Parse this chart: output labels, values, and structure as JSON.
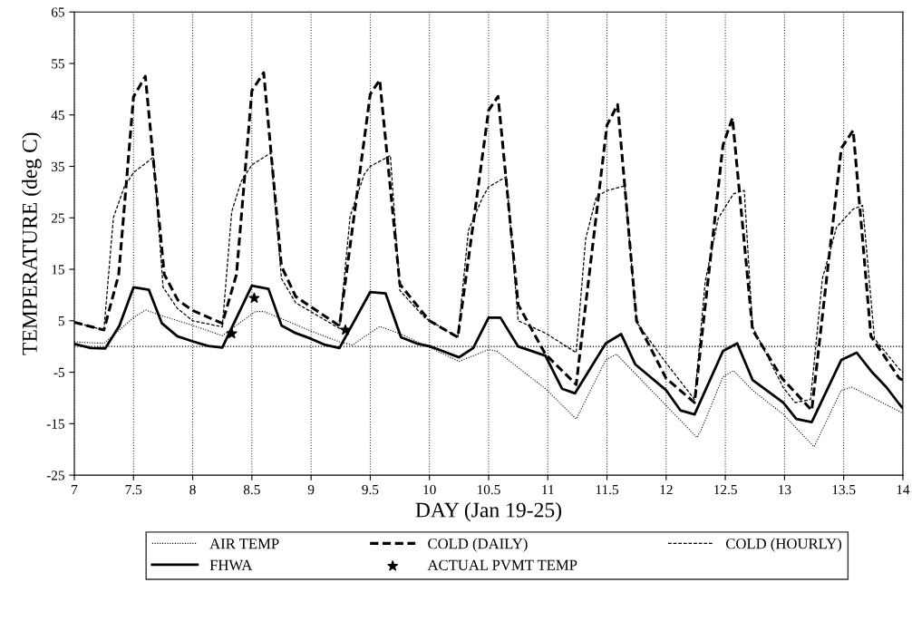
{
  "chart_data": {
    "type": "line",
    "xlabel": "DAY (Jan 19-25)",
    "ylabel": "TEMPERATURE (deg C)",
    "xlim": [
      7,
      14
    ],
    "ylim": [
      -25,
      65
    ],
    "xticks": [
      7,
      7.5,
      8,
      8.5,
      9,
      9.5,
      10,
      10.5,
      11,
      11.5,
      12,
      12.5,
      13,
      13.5,
      14
    ],
    "yticks": [
      -25,
      -15,
      -5,
      5,
      15,
      25,
      35,
      45,
      55,
      65
    ],
    "grid": "x",
    "legend": "bottom",
    "marker": "none",
    "ref_lines": [
      {
        "axis": "y",
        "value": 0,
        "line_style": "dotted",
        "color": "#000000"
      }
    ],
    "series": [
      {
        "name": "AIR TEMP",
        "color": "#000000",
        "line_style": "dotted",
        "x": [
          7.0,
          7.25,
          7.5,
          7.6,
          7.75,
          8.0,
          8.25,
          8.53,
          8.6,
          8.73,
          9.0,
          9.24,
          9.35,
          9.58,
          9.76,
          10.01,
          10.25,
          10.5,
          10.57,
          10.98,
          11.24,
          11.49,
          11.58,
          12.0,
          12.26,
          12.3,
          12.48,
          12.57,
          12.73,
          12.99,
          13.25,
          13.48,
          13.57,
          13.97,
          14.0
        ],
        "values": [
          0.9,
          0.6,
          5.6,
          7.1,
          5.9,
          4.1,
          2.1,
          6.8,
          6.8,
          5.6,
          3,
          0.9,
          0.3,
          3.9,
          2.4,
          -0.3,
          -2.9,
          -0.6,
          -0.9,
          -8.2,
          -14.1,
          -2.6,
          -1.5,
          -11.5,
          -17.7,
          -16,
          -5.9,
          -4.7,
          -8.5,
          -13.2,
          -19.5,
          -8.5,
          -7.9,
          -12.6,
          -13
        ]
      },
      {
        "name": "COLD (DAILY)",
        "color": "#000000",
        "line_style": "dashed",
        "x": [
          7.0,
          7.25,
          7.375,
          7.5,
          7.6,
          7.76,
          7.875,
          8.0,
          8.25,
          8.37,
          8.5,
          8.6,
          8.75,
          8.87,
          9.24,
          9.5,
          9.58,
          9.75,
          10.0,
          10.24,
          10.5,
          10.58,
          10.75,
          10.98,
          11.24,
          11.5,
          11.59,
          11.75,
          12.0,
          12.24,
          12.48,
          12.56,
          12.73,
          12.98,
          13.23,
          13.48,
          13.58,
          13.73,
          13.97,
          14.0
        ],
        "values": [
          4.7,
          3.2,
          14,
          48.5,
          52.5,
          14,
          9,
          7,
          4.5,
          14,
          49.7,
          53.2,
          15.6,
          9.7,
          4,
          49,
          51.8,
          12.1,
          5,
          1.8,
          45.9,
          48.6,
          8.1,
          -1.5,
          -7.4,
          43,
          47,
          5,
          -6.2,
          -10.9,
          39.1,
          44.4,
          3.2,
          -6.2,
          -12.4,
          38.5,
          42,
          2,
          -6.2,
          -6.5
        ]
      },
      {
        "name": "COLD (HOURLY)",
        "color": "#000000",
        "line_style": "dashed",
        "x": [
          7.0,
          7.25,
          7.33,
          7.42,
          7.5,
          7.67,
          7.75,
          7.87,
          8.0,
          8.25,
          8.33,
          8.41,
          8.5,
          8.66,
          8.75,
          8.87,
          9.24,
          9.33,
          9.45,
          9.5,
          9.67,
          9.75,
          9.96,
          10.24,
          10.33,
          10.45,
          10.5,
          10.65,
          10.75,
          10.98,
          11.24,
          11.32,
          11.41,
          11.5,
          11.65,
          11.75,
          12.0,
          12.24,
          12.33,
          12.44,
          12.57,
          12.66,
          12.73,
          12.99,
          13.09,
          13.22,
          13.32,
          13.44,
          13.58,
          13.66,
          13.76,
          13.97,
          14.0
        ],
        "values": [
          4.7,
          3.2,
          25,
          30.9,
          33.8,
          36.8,
          11.5,
          7.4,
          5,
          3.8,
          26.2,
          32.1,
          35.3,
          37.6,
          13.2,
          8.5,
          3.5,
          25.3,
          33.5,
          35,
          37.1,
          10.9,
          5.6,
          1.8,
          22.6,
          29,
          31,
          33,
          5,
          2.6,
          -1.2,
          20.9,
          29.1,
          30.3,
          31.2,
          4.7,
          -3.2,
          -10.3,
          12.6,
          24.9,
          29.7,
          30.3,
          3.8,
          -8,
          -10.9,
          -10.3,
          13.2,
          23.2,
          26.7,
          27.4,
          1.5,
          -4.4,
          -5
        ]
      },
      {
        "name": "FHWA",
        "color": "#000000",
        "line_style": "solid",
        "x": [
          7.0,
          7.14,
          7.26,
          7.38,
          7.5,
          7.63,
          7.74,
          7.87,
          8.0,
          8.13,
          8.25,
          8.5,
          8.64,
          8.75,
          8.87,
          9.0,
          9.12,
          9.24,
          9.5,
          9.63,
          9.76,
          9.89,
          10.01,
          10.25,
          10.37,
          10.5,
          10.6,
          10.75,
          10.98,
          11.12,
          11.23,
          11.49,
          11.62,
          11.74,
          12.0,
          12.12,
          12.24,
          12.48,
          12.6,
          12.73,
          12.99,
          13.1,
          13.23,
          13.48,
          13.61,
          13.74,
          13.86,
          13.97,
          14.0
        ],
        "values": [
          0.5,
          -0.3,
          -0.4,
          4,
          11.5,
          11,
          4.5,
          2,
          1,
          0.1,
          -0.2,
          11.8,
          11.2,
          4.1,
          2.6,
          1.5,
          0.3,
          -0.3,
          10.6,
          10.3,
          1.8,
          0.6,
          0,
          -2.1,
          -0.3,
          5.6,
          5.6,
          0,
          -1.8,
          -8.2,
          -9.1,
          0.6,
          2.4,
          -3.5,
          -8.5,
          -12.4,
          -13.2,
          -0.9,
          0.6,
          -6.5,
          -10.9,
          -14.1,
          -14.7,
          -2.6,
          -1.2,
          -5,
          -7.9,
          -11.2,
          -12
        ]
      },
      {
        "name": "ACTUAL PVMT TEMP",
        "type": "scatter",
        "marker": "star",
        "color": "#000000",
        "x": [
          8.33,
          8.52,
          9.29
        ],
        "values": [
          2.5,
          9.4,
          3.2
        ]
      }
    ]
  }
}
